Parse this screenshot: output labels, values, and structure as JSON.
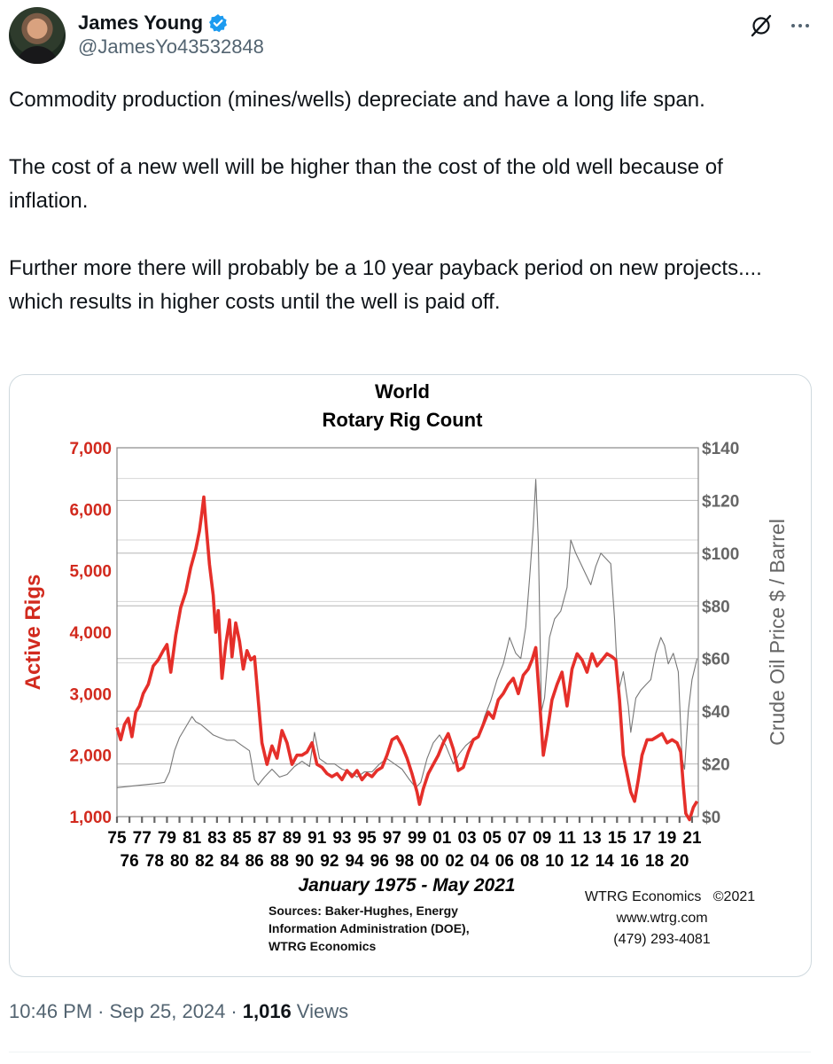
{
  "tweet": {
    "author_name": "James Young",
    "handle": "@JamesYo43532848",
    "paragraphs": [
      "Commodity production (mines/wells) depreciate and have a long  life span.",
      "The cost of a new well will be higher than the cost of the old well because of inflation.",
      "Further more there will probably be a 10 year payback period on new projects.... which results in higher costs until the well is paid off."
    ],
    "time": "10:46 PM",
    "date": "Sep 25, 2024",
    "views_count": "1,016",
    "views_label": "Views",
    "separator": "·"
  },
  "icons": {
    "verified": "verified-badge-icon",
    "grok": "grok-icon",
    "more": "more-icon"
  },
  "chart_data": {
    "type": "line",
    "title": "World",
    "subtitle": "Rotary Rig Count",
    "ylabel_left": "Active Rigs",
    "ylabel_right": "Crude Oil Price $ / Barrel",
    "yticks_left": [
      "1,000",
      "2,000",
      "3,000",
      "4,000",
      "5,000",
      "6,000",
      "7,000"
    ],
    "yticks_right": [
      "$0",
      "$20",
      "$40",
      "$60",
      "$80",
      "$100",
      "$120",
      "$140"
    ],
    "ylim_left": [
      1000,
      7000
    ],
    "ylim_right": [
      0,
      140
    ],
    "xlim": [
      1975,
      2021.5
    ],
    "grid": true,
    "xticks_top": [
      "75",
      "77",
      "79",
      "81",
      "83",
      "85",
      "87",
      "89",
      "91",
      "93",
      "95",
      "97",
      "99",
      "01",
      "03",
      "05",
      "07",
      "09",
      "11",
      "13",
      "15",
      "17",
      "19",
      "21"
    ],
    "xticks_bottom": [
      "76",
      "78",
      "80",
      "82",
      "84",
      "86",
      "88",
      "90",
      "92",
      "94",
      "96",
      "98",
      "00",
      "02",
      "04",
      "06",
      "08",
      "10",
      "12",
      "14",
      "16",
      "18",
      "20"
    ],
    "date_range_label": "January 1975 - May 2021",
    "sources": [
      "Sources: Baker-Hughes, Energy",
      "Information Administration (DOE),",
      "WTRG Economics"
    ],
    "credit": [
      "WTRG Economics   ©2021",
      "www.wtrg.com",
      "(479) 293-4081"
    ],
    "colors": {
      "rigs": "#e52f2a",
      "oil": "#777777",
      "axis_left_text": "#d22a1e",
      "axis_right_text": "#666666",
      "grid": "#b5b5b5"
    },
    "series": [
      {
        "name": "Active Rigs",
        "axis": "left",
        "x": [
          1975.0,
          1975.3,
          1975.6,
          1975.9,
          1976.2,
          1976.5,
          1976.8,
          1977.1,
          1977.5,
          1977.9,
          1978.3,
          1978.7,
          1979.0,
          1979.3,
          1979.7,
          1980.1,
          1980.5,
          1980.9,
          1981.3,
          1981.6,
          1981.8,
          1981.95,
          1982.1,
          1982.4,
          1982.7,
          1982.9,
          1983.1,
          1983.4,
          1983.7,
          1984.0,
          1984.2,
          1984.5,
          1984.8,
          1985.1,
          1985.4,
          1985.7,
          1986.0,
          1986.3,
          1986.6,
          1987.0,
          1987.4,
          1987.8,
          1988.2,
          1988.6,
          1989.0,
          1989.4,
          1989.8,
          1990.2,
          1990.6,
          1991.0,
          1991.4,
          1991.8,
          1992.2,
          1992.6,
          1993.0,
          1993.4,
          1993.8,
          1994.2,
          1994.6,
          1995.0,
          1995.4,
          1995.8,
          1996.2,
          1996.6,
          1997.0,
          1997.4,
          1997.8,
          1998.2,
          1998.6,
          1999.0,
          1999.2,
          1999.5,
          1999.9,
          2000.3,
          2000.7,
          2001.1,
          2001.5,
          2001.9,
          2002.3,
          2002.7,
          2003.1,
          2003.5,
          2003.9,
          2004.3,
          2004.7,
          2005.1,
          2005.5,
          2005.9,
          2006.3,
          2006.7,
          2007.1,
          2007.5,
          2007.9,
          2008.2,
          2008.5,
          2008.8,
          2009.1,
          2009.4,
          2009.8,
          2010.2,
          2010.6,
          2011.0,
          2011.4,
          2011.8,
          2012.2,
          2012.6,
          2013.0,
          2013.4,
          2013.8,
          2014.2,
          2014.6,
          2014.9,
          2015.2,
          2015.5,
          2015.8,
          2016.1,
          2016.4,
          2016.7,
          2017.0,
          2017.4,
          2017.8,
          2018.2,
          2018.6,
          2019.0,
          2019.4,
          2019.8,
          2020.1,
          2020.3,
          2020.5,
          2020.8,
          2021.1,
          2021.4
        ],
        "values": [
          2450,
          2250,
          2500,
          2600,
          2300,
          2700,
          2800,
          3000,
          3150,
          3450,
          3550,
          3700,
          3800,
          3350,
          3950,
          4400,
          4650,
          5050,
          5350,
          5650,
          5950,
          6200,
          5800,
          5100,
          4600,
          4000,
          4350,
          3250,
          3800,
          4200,
          3600,
          4150,
          3850,
          3400,
          3700,
          3550,
          3600,
          2900,
          2200,
          1850,
          2150,
          1950,
          2400,
          2200,
          1850,
          2000,
          2000,
          2050,
          2200,
          1850,
          1800,
          1700,
          1650,
          1700,
          1600,
          1750,
          1650,
          1750,
          1600,
          1700,
          1650,
          1750,
          1800,
          2000,
          2250,
          2300,
          2150,
          1950,
          1700,
          1400,
          1200,
          1450,
          1700,
          1850,
          2000,
          2200,
          2350,
          2100,
          1750,
          1800,
          2050,
          2250,
          2300,
          2500,
          2700,
          2600,
          2900,
          3000,
          3150,
          3250,
          3000,
          3300,
          3400,
          3550,
          3750,
          2900,
          2000,
          2350,
          2900,
          3150,
          3350,
          2800,
          3400,
          3650,
          3550,
          3350,
          3650,
          3450,
          3550,
          3650,
          3600,
          3550,
          2900,
          2000,
          1700,
          1400,
          1250,
          1600,
          2000,
          2250,
          2250,
          2300,
          2350,
          2200,
          2250,
          2200,
          2050,
          1500,
          1050,
          950,
          1150,
          1250
        ]
      },
      {
        "name": "Crude Oil Price",
        "axis": "right",
        "x": [
          1975.0,
          1976.0,
          1977.0,
          1978.0,
          1978.8,
          1979.2,
          1979.6,
          1980.0,
          1980.5,
          1981.0,
          1981.3,
          1981.7,
          1982.2,
          1982.7,
          1983.2,
          1983.8,
          1984.4,
          1985.0,
          1985.6,
          1986.0,
          1986.3,
          1986.8,
          1987.4,
          1988.0,
          1988.6,
          1989.2,
          1989.8,
          1990.4,
          1990.8,
          1991.2,
          1991.8,
          1992.4,
          1993.0,
          1993.6,
          1994.2,
          1994.8,
          1995.4,
          1996.0,
          1996.6,
          1997.2,
          1997.8,
          1998.4,
          1998.9,
          1999.3,
          1999.8,
          2000.3,
          2000.8,
          2001.3,
          2001.9,
          2002.4,
          2002.9,
          2003.4,
          2003.9,
          2004.4,
          2004.9,
          2005.4,
          2005.9,
          2006.4,
          2006.9,
          2007.3,
          2007.7,
          2008.0,
          2008.3,
          2008.5,
          2008.7,
          2008.95,
          2009.2,
          2009.6,
          2010.0,
          2010.5,
          2011.0,
          2011.3,
          2011.7,
          2012.1,
          2012.5,
          2012.9,
          2013.3,
          2013.7,
          2014.1,
          2014.5,
          2014.8,
          2015.1,
          2015.5,
          2015.9,
          2016.1,
          2016.5,
          2016.9,
          2017.3,
          2017.7,
          2018.1,
          2018.5,
          2018.8,
          2019.1,
          2019.5,
          2019.9,
          2020.2,
          2020.4,
          2020.7,
          2021.0,
          2021.4
        ],
        "values": [
          11,
          11.5,
          12,
          12.5,
          13,
          17,
          25,
          30,
          34,
          38,
          36,
          35,
          33,
          31,
          30,
          29,
          29,
          27,
          25,
          14,
          12,
          15,
          18,
          15,
          16,
          19,
          21,
          19,
          32,
          22,
          20,
          20,
          18,
          17,
          15,
          17,
          17,
          20,
          22,
          20,
          18,
          14,
          11,
          13,
          22,
          28,
          31,
          27,
          20,
          24,
          27,
          29,
          30,
          38,
          44,
          52,
          58,
          68,
          62,
          60,
          72,
          90,
          110,
          128,
          105,
          40,
          45,
          68,
          75,
          78,
          87,
          105,
          100,
          96,
          92,
          88,
          95,
          100,
          98,
          96,
          75,
          47,
          55,
          42,
          32,
          45,
          48,
          50,
          52,
          62,
          68,
          65,
          58,
          62,
          55,
          22,
          18,
          40,
          52,
          60
        ]
      }
    ]
  }
}
